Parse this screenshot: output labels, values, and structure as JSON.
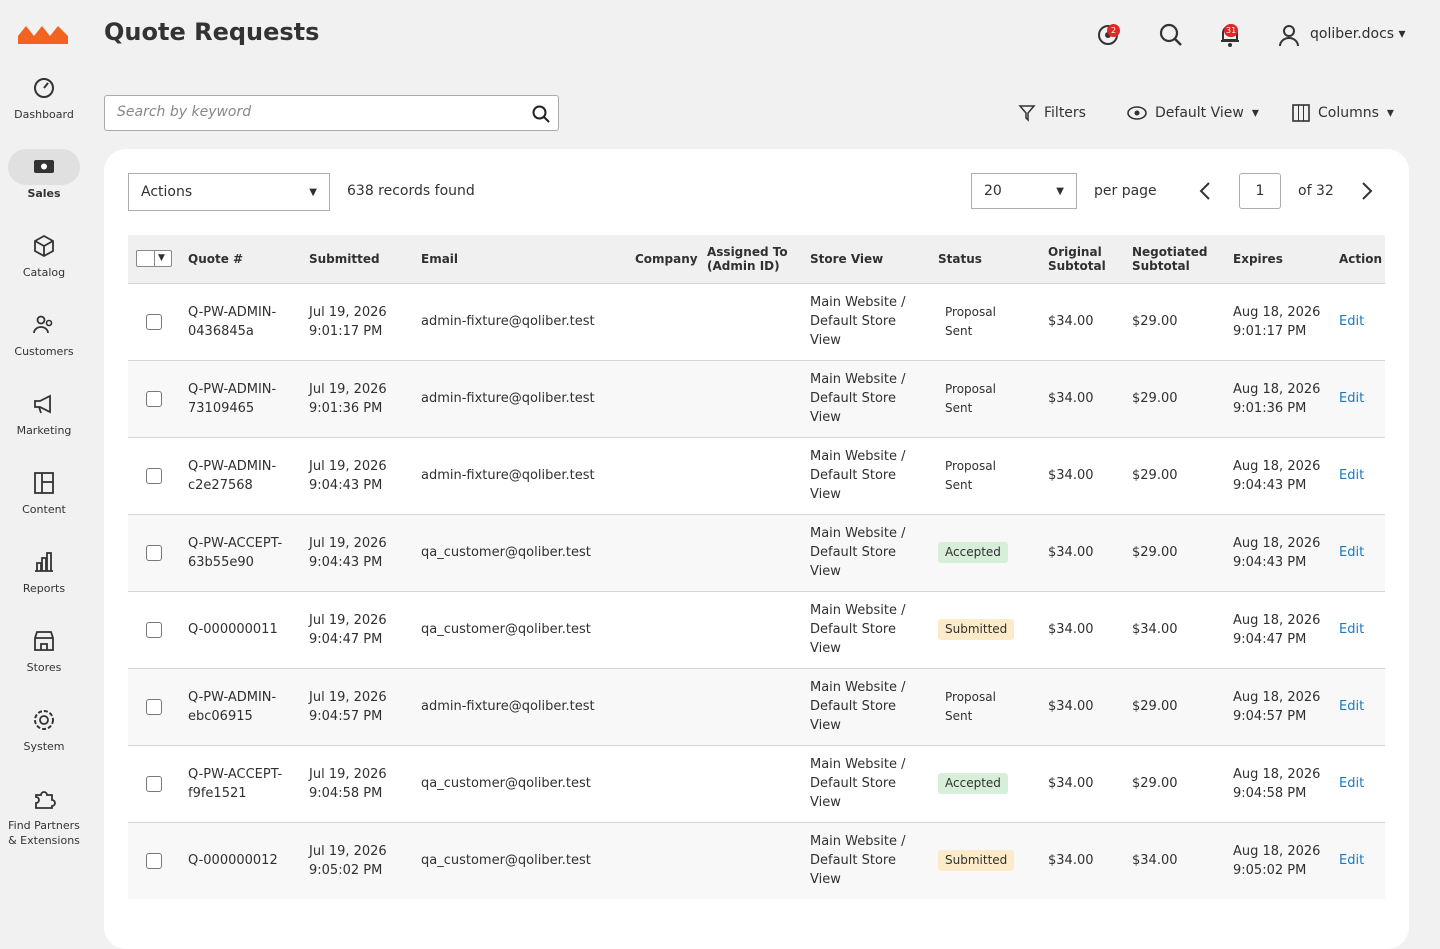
{
  "sidebar": {
    "items": [
      {
        "label": "Dashboard",
        "active": false
      },
      {
        "label": "Sales",
        "active": true
      },
      {
        "label": "Catalog",
        "active": false
      },
      {
        "label": "Customers",
        "active": false
      },
      {
        "label": "Marketing",
        "active": false
      },
      {
        "label": "Content",
        "active": false
      },
      {
        "label": "Reports",
        "active": false
      },
      {
        "label": "Stores",
        "active": false
      },
      {
        "label": "System",
        "active": false
      },
      {
        "label": "Find Partners & Extensions",
        "active": false
      }
    ]
  },
  "header": {
    "title": "Quote Requests",
    "system_messages": "2",
    "notifications": "31",
    "user": "qoliber.docs"
  },
  "toolbar": {
    "search_placeholder": "Search by keyword",
    "filters": "Filters",
    "view": "Default View",
    "columns": "Columns"
  },
  "grid": {
    "actions": "Actions",
    "records": "638 records found",
    "per_page_value": "20",
    "per_page_label": "per page",
    "page": "1",
    "page_total": "of 32",
    "headers": [
      "Quote #",
      "Submitted",
      "Email",
      "Company",
      "Assigned To (Admin ID)",
      "Store View",
      "Status",
      "Original Subtotal",
      "Negotiated Subtotal",
      "Expires",
      "Action"
    ],
    "status_colors": {
      "Accepted": "#d7efd9",
      "Submitted": "#fcebc8"
    },
    "rows": [
      [
        "Q-PW-ADMIN-0436845a",
        "Jul 19, 2026 9:01:17 PM",
        "admin-fixture@qoliber.test",
        "",
        "",
        "Main Website / Default Store View",
        "Proposal Sent",
        "$34.00",
        "$29.00",
        "Aug 18, 2026 9:01:17 PM",
        "Edit"
      ],
      [
        "Q-PW-ADMIN-73109465",
        "Jul 19, 2026 9:01:36 PM",
        "admin-fixture@qoliber.test",
        "",
        "",
        "Main Website / Default Store View",
        "Proposal Sent",
        "$34.00",
        "$29.00",
        "Aug 18, 2026 9:01:36 PM",
        "Edit"
      ],
      [
        "Q-PW-ADMIN-c2e27568",
        "Jul 19, 2026 9:04:43 PM",
        "admin-fixture@qoliber.test",
        "",
        "",
        "Main Website / Default Store View",
        "Proposal Sent",
        "$34.00",
        "$29.00",
        "Aug 18, 2026 9:04:43 PM",
        "Edit"
      ],
      [
        "Q-PW-ACCEPT-63b55e90",
        "Jul 19, 2026 9:04:43 PM",
        "qa_customer@qoliber.test",
        "",
        "",
        "Main Website / Default Store View",
        "Accepted",
        "$34.00",
        "$29.00",
        "Aug 18, 2026 9:04:43 PM",
        "Edit"
      ],
      [
        "Q-000000011",
        "Jul 19, 2026 9:04:47 PM",
        "qa_customer@qoliber.test",
        "",
        "",
        "Main Website / Default Store View",
        "Submitted",
        "$34.00",
        "$34.00",
        "Aug 18, 2026 9:04:47 PM",
        "Edit"
      ],
      [
        "Q-PW-ADMIN-ebc06915",
        "Jul 19, 2026 9:04:57 PM",
        "admin-fixture@qoliber.test",
        "",
        "",
        "Main Website / Default Store View",
        "Proposal Sent",
        "$34.00",
        "$29.00",
        "Aug 18, 2026 9:04:57 PM",
        "Edit"
      ],
      [
        "Q-PW-ACCEPT-f9fe1521",
        "Jul 19, 2026 9:04:58 PM",
        "qa_customer@qoliber.test",
        "",
        "",
        "Main Website / Default Store View",
        "Accepted",
        "$34.00",
        "$29.00",
        "Aug 18, 2026 9:04:58 PM",
        "Edit"
      ],
      [
        "Q-000000012",
        "Jul 19, 2026 9:05:02 PM",
        "qa_customer@qoliber.test",
        "",
        "",
        "Main Website / Default Store View",
        "Submitted",
        "$34.00",
        "$34.00",
        "Aug 18, 2026 9:05:02 PM",
        "Edit"
      ]
    ]
  }
}
